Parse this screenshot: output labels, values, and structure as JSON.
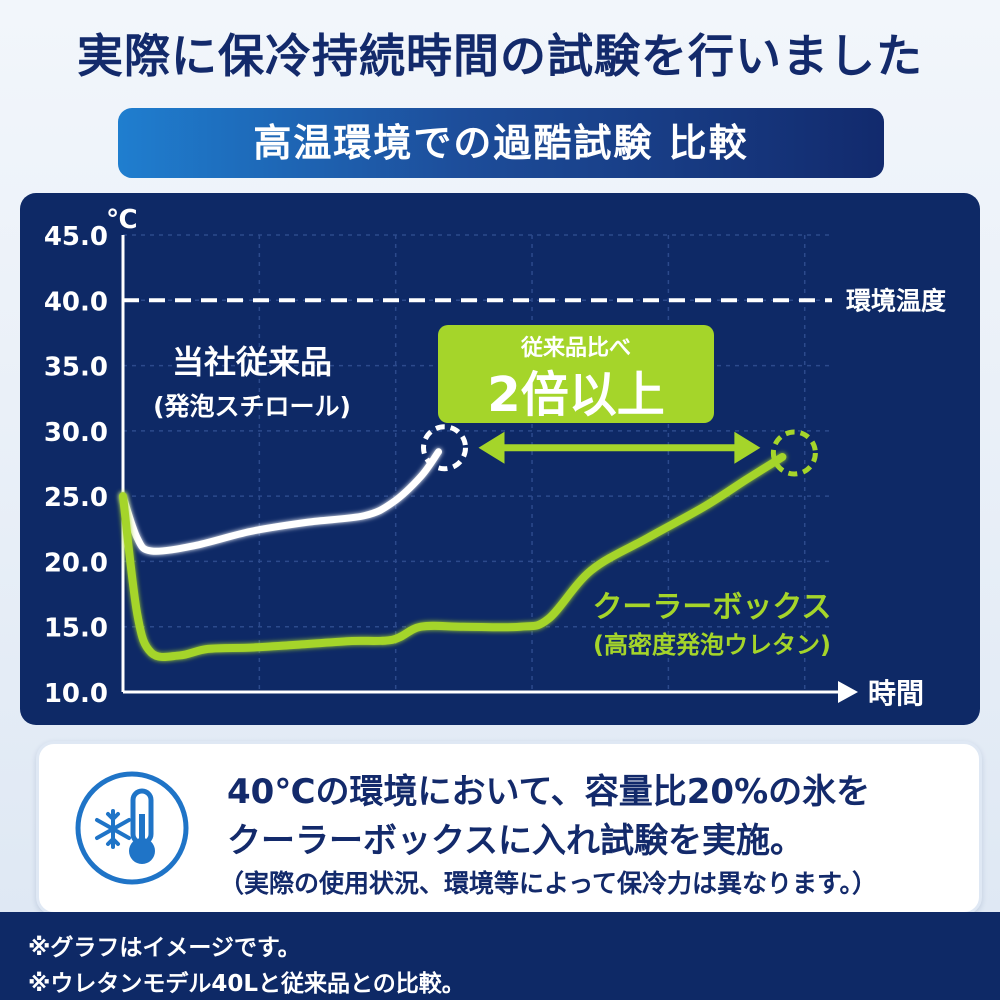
{
  "title": "実際に保冷持続時間の試験を行いました",
  "subtitle": "高温環境での過酷試験 比較",
  "chart_data": {
    "type": "line",
    "title": "",
    "y_unit": "℃",
    "xlabel": "時間",
    "ylim": [
      10.0,
      45.0
    ],
    "yticks": [
      "10.0",
      "15.0",
      "20.0",
      "25.0",
      "30.0",
      "35.0",
      "40.0",
      "45.0"
    ],
    "ambient": {
      "label": "環境温度",
      "value": 40.0
    },
    "series": [
      {
        "name": "当社従来品",
        "note": "(発泡スチロール)",
        "color": "#ffffff",
        "points": [
          [
            0,
            25.0
          ],
          [
            0.02,
            21.8
          ],
          [
            0.04,
            20.8
          ],
          [
            0.1,
            21.2
          ],
          [
            0.18,
            22.3
          ],
          [
            0.26,
            23.0
          ],
          [
            0.34,
            23.5
          ],
          [
            0.38,
            24.5
          ],
          [
            0.42,
            26.5
          ],
          [
            0.445,
            28.4
          ]
        ]
      },
      {
        "name": "クーラーボックス",
        "note": "(高密度発泡ウレタン)",
        "color": "#a5d52a",
        "points": [
          [
            0,
            25.0
          ],
          [
            0.02,
            16.0
          ],
          [
            0.04,
            13.0
          ],
          [
            0.08,
            12.8
          ],
          [
            0.12,
            13.3
          ],
          [
            0.18,
            13.4
          ],
          [
            0.24,
            13.6
          ],
          [
            0.32,
            13.9
          ],
          [
            0.38,
            14.0
          ],
          [
            0.42,
            15.0
          ],
          [
            0.48,
            15.0
          ],
          [
            0.56,
            15.0
          ],
          [
            0.6,
            15.6
          ],
          [
            0.66,
            19.3
          ],
          [
            0.74,
            21.8
          ],
          [
            0.82,
            24.2
          ],
          [
            0.88,
            26.3
          ],
          [
            0.93,
            28.0
          ]
        ]
      }
    ],
    "callout": {
      "line1": "従来品比べ",
      "line2": "2倍以上"
    }
  },
  "info": {
    "line1": "40℃の環境において、容量比20%の氷を",
    "line2": "クーラーボックスに入れ試験を実施。",
    "line3": "（実際の使用状況、環境等によって保冷力は異なります。）"
  },
  "notes": [
    "※グラフはイメージです。",
    "※ウレタンモデル40Lと従来品との比較。"
  ],
  "icons": {
    "info": "snowflake-thermometer-icon"
  },
  "colors": {
    "navy": "#0e2966",
    "title": "#132a6b",
    "accent_green": "#a5d52a",
    "icon_blue": "#1f74c7"
  }
}
